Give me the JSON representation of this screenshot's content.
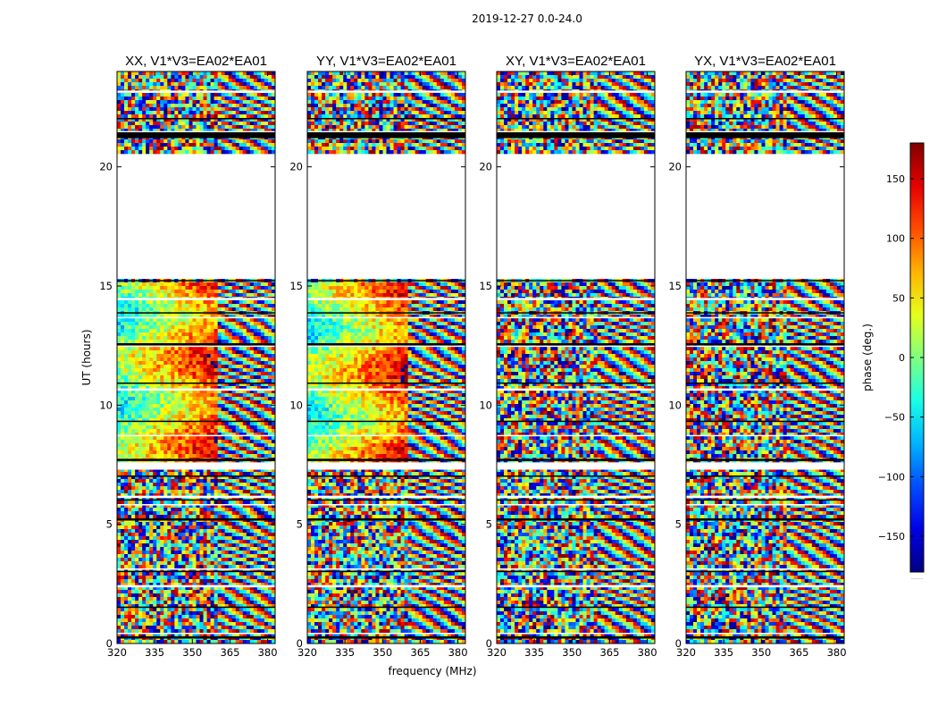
{
  "chart_data": {
    "type": "heatmap",
    "suptitle": "2019-12-27 0.0-24.0",
    "panels": [
      {
        "title": "XX, V1*V3=EA02*EA01",
        "pol": "XX"
      },
      {
        "title": "YY, V1*V3=EA02*EA01",
        "pol": "YY"
      },
      {
        "title": "XY, V1*V3=EA02*EA01",
        "pol": "XY"
      },
      {
        "title": "YX, V1*V3=EA02*EA01",
        "pol": "YX"
      }
    ],
    "xlabel": "frequency (MHz)",
    "ylabel": "UT (hours)",
    "xlim": [
      320,
      383
    ],
    "ylim": [
      0,
      24
    ],
    "xticks": [
      320,
      335,
      350,
      365,
      380
    ],
    "yticks": [
      0,
      5,
      10,
      15,
      20
    ],
    "flagged_ut_range": [
      20.5,
      15.3
    ],
    "colorbar": {
      "label": "phase (deg.)",
      "colormap": "jet",
      "vmin": -180,
      "vmax": 180,
      "ticks": [
        150,
        100,
        50,
        0,
        -50,
        -100,
        -150
      ],
      "tick_labels": [
        "150",
        "100",
        "50",
        "0",
        "−50",
        "−100",
        "−150"
      ],
      "footer": "......"
    }
  }
}
